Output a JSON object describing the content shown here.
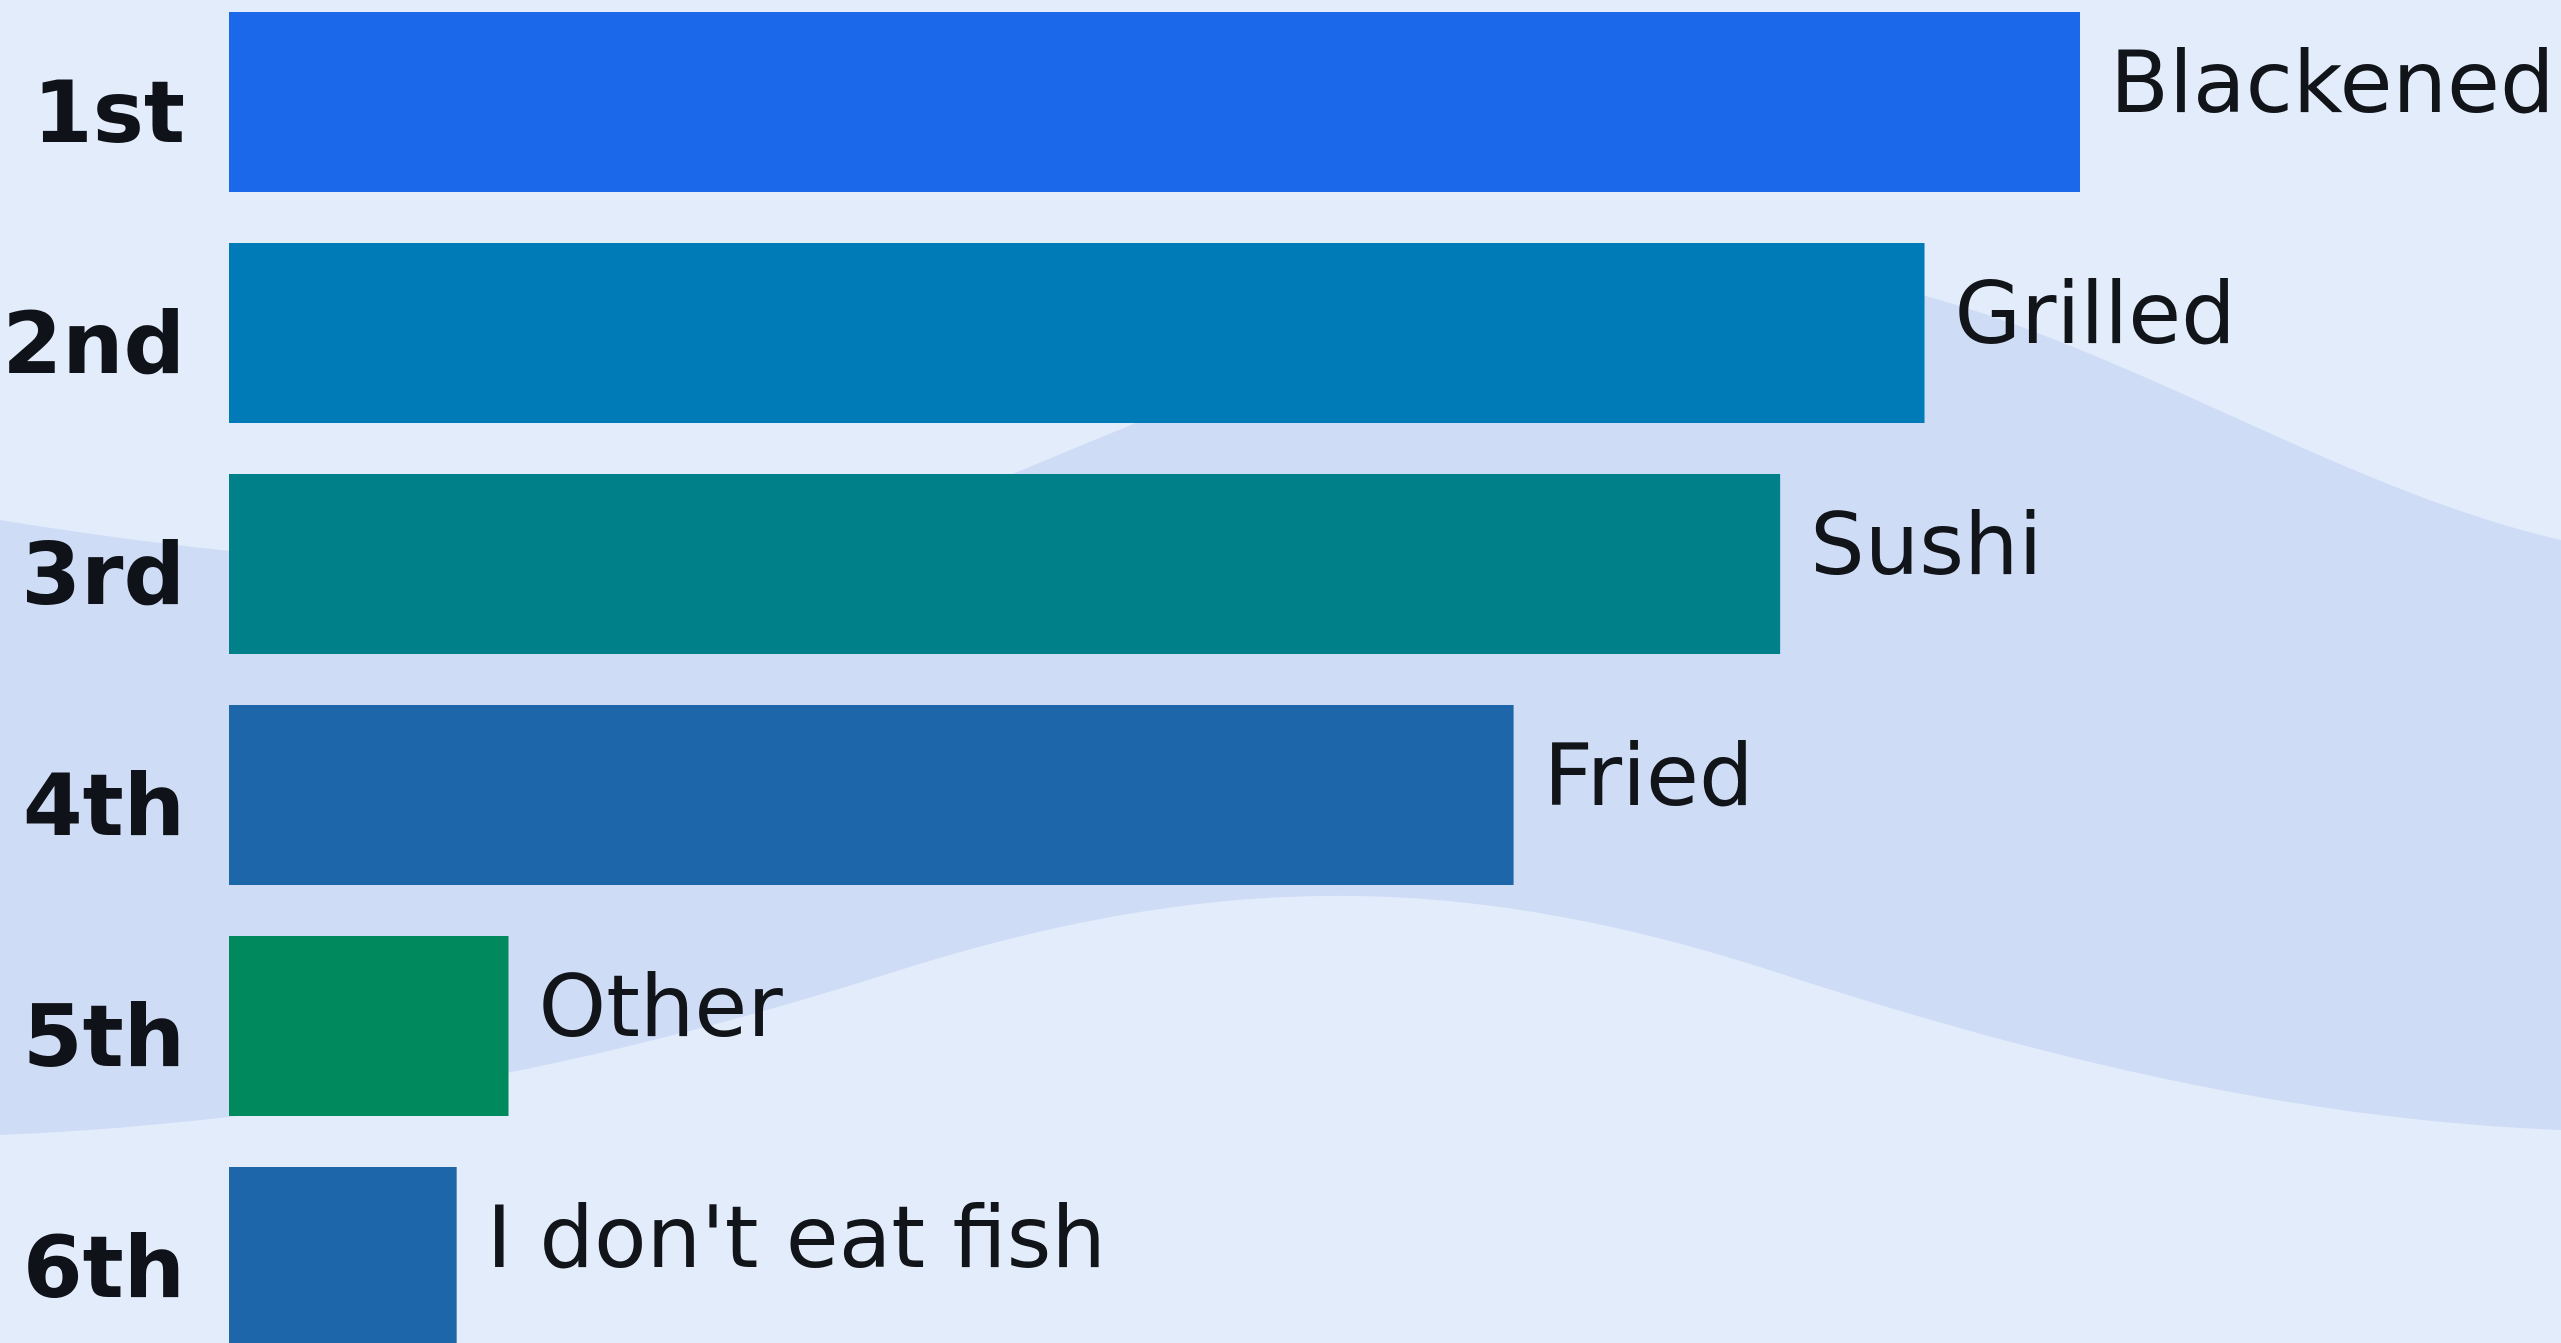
{
  "chart_data": {
    "type": "bar",
    "orientation": "horizontal",
    "ranks": [
      "1st",
      "2nd",
      "3rd",
      "4th",
      "5th",
      "6th"
    ],
    "categories": [
      "Blackened",
      "Grilled",
      "Sushi",
      "Fried",
      "Other",
      "I don't eat fish"
    ],
    "values": [
      100,
      91.6,
      83.8,
      69.4,
      15.1,
      12.3
    ],
    "colors": [
      "#1c68ea",
      "#007bb8",
      "#00818a",
      "#1d66aa",
      "#00895c",
      "#1d66aa"
    ],
    "xlim": [
      0,
      100
    ],
    "grid": false,
    "legend": "none"
  },
  "colors": {
    "background": "#e3ecfb",
    "wave": "#cfdcf6",
    "rank_text": "#0f1218",
    "label_text": "#111418"
  }
}
